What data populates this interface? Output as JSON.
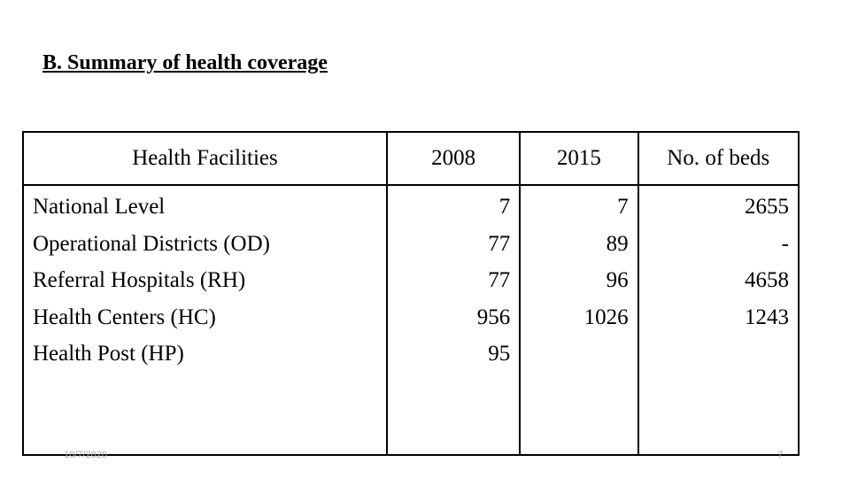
{
  "title": "B. Summary of health coverage",
  "table": {
    "headers": {
      "facilities": "Health Facilities",
      "y2008": "2008",
      "y2015": "2015",
      "beds": "No. of beds"
    },
    "rows": [
      {
        "facility": "National Level",
        "y2008": "7",
        "y2015": "7",
        "beds": "2655"
      },
      {
        "facility": "Operational Districts (OD)",
        "y2008": "77",
        "y2015": "89",
        "beds": "-"
      },
      {
        "facility": "Referral Hospitals (RH)",
        "y2008": "77",
        "y2015": "96",
        "beds": "4658"
      },
      {
        "facility": "Health Centers (HC)",
        "y2008": "956",
        "y2015": "1026",
        "beds": "1243"
      },
      {
        "facility": "Health Post (HP)",
        "y2008": "95",
        "y2015": "",
        "beds": ""
      }
    ]
  },
  "footer": {
    "date": "10/7/2020",
    "page_number": "7"
  }
}
